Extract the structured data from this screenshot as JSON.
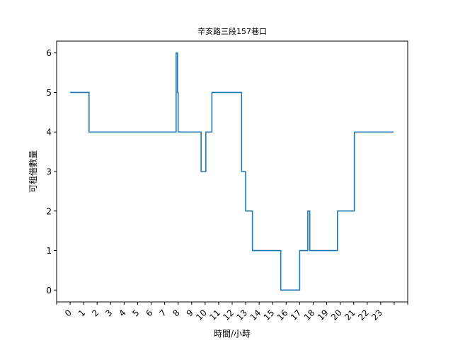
{
  "chart_data": {
    "type": "line",
    "title": "辛亥路三段157巷口",
    "xlabel": "時間/小時",
    "ylabel": "可租借數量",
    "x_tick_labels": [
      "0",
      "1",
      "2",
      "3",
      "4",
      "5",
      "6",
      "7",
      "8",
      "9",
      "10",
      "11",
      "12",
      "13",
      "14",
      "15",
      "16",
      "17",
      "18",
      "19",
      "20",
      "21",
      "22",
      "23"
    ],
    "y_tick_labels": [
      "0",
      "1",
      "2",
      "3",
      "4",
      "5",
      "6"
    ],
    "xlim": [
      -1,
      25
    ],
    "ylim": [
      -0.3,
      6.3
    ],
    "line_color": "#1f77b4",
    "step": true,
    "series": [
      {
        "points": [
          [
            0.0,
            5
          ],
          [
            1.4,
            5
          ],
          [
            1.4,
            4
          ],
          [
            7.85,
            4
          ],
          [
            7.85,
            6
          ],
          [
            7.95,
            6
          ],
          [
            7.95,
            5
          ],
          [
            8.0,
            5
          ],
          [
            8.0,
            4
          ],
          [
            9.7,
            4
          ],
          [
            9.7,
            3
          ],
          [
            10.05,
            3
          ],
          [
            10.05,
            4
          ],
          [
            10.5,
            4
          ],
          [
            10.5,
            5
          ],
          [
            12.7,
            5
          ],
          [
            12.7,
            3
          ],
          [
            13.0,
            3
          ],
          [
            13.0,
            2
          ],
          [
            13.5,
            2
          ],
          [
            13.5,
            1
          ],
          [
            15.6,
            1
          ],
          [
            15.6,
            0
          ],
          [
            17.0,
            0
          ],
          [
            17.0,
            1
          ],
          [
            17.6,
            1
          ],
          [
            17.6,
            2
          ],
          [
            17.75,
            2
          ],
          [
            17.75,
            1
          ],
          [
            19.8,
            1
          ],
          [
            19.8,
            2
          ],
          [
            21.05,
            2
          ],
          [
            21.05,
            4
          ],
          [
            23.95,
            4
          ]
        ]
      }
    ]
  }
}
